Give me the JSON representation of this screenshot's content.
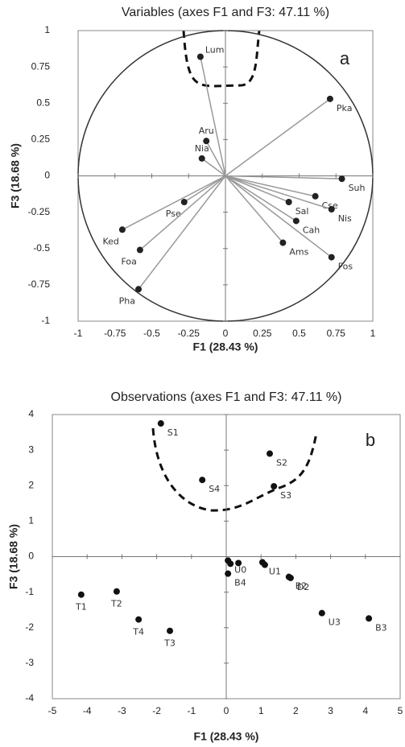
{
  "chart_data": [
    {
      "type": "scatter",
      "vectors": true,
      "title": "Variables (axes F1 and F3: 47.11 %)",
      "xlabel": "F1 (28.43 %)",
      "ylabel": "F3 (18.68 %)",
      "annotation": "a",
      "labels": [
        "Lum",
        "Pka",
        "Aru",
        "Nia",
        "Suh",
        "Cse",
        "Sal",
        "Nis",
        "Cah",
        "Ams",
        "Fos",
        "Pse",
        "Ked",
        "Foa",
        "Pha"
      ],
      "x": [
        -0.17,
        0.71,
        -0.13,
        -0.16,
        0.79,
        0.61,
        0.43,
        0.72,
        0.48,
        0.39,
        0.72,
        -0.28,
        -0.7,
        -0.58,
        -0.59
      ],
      "values": [
        0.82,
        0.53,
        0.24,
        0.12,
        -0.02,
        -0.14,
        -0.18,
        -0.23,
        -0.31,
        -0.46,
        -0.56,
        -0.18,
        -0.37,
        -0.51,
        -0.78
      ],
      "color": "#222222",
      "line_color": "#999999",
      "xlim": [
        -1,
        1
      ],
      "ylim": [
        -1,
        1
      ],
      "xticks": [
        -1,
        -0.75,
        -0.5,
        -0.25,
        0,
        0.25,
        0.5,
        0.75,
        1
      ],
      "yticks": [
        -1,
        -0.75,
        -0.5,
        -0.25,
        0,
        0.25,
        0.5,
        0.75,
        1
      ]
    },
    {
      "type": "scatter",
      "vectors": false,
      "title": "Observations (axes F1 and F3: 47.11 %)",
      "xlabel": "F1 (28.43 %)",
      "ylabel": "F3 (18.68 %)",
      "annotation": "b",
      "labels": [
        "S1",
        "S2",
        "S3",
        "S4",
        "T1",
        "T2",
        "T4",
        "T3",
        "U0",
        null,
        null,
        "B4",
        "U1",
        null,
        "B2",
        "D2",
        "U3",
        "B3"
      ],
      "x": [
        -1.88,
        1.25,
        1.37,
        -0.69,
        -4.17,
        -3.15,
        -2.52,
        -1.62,
        0.05,
        0.12,
        0.35,
        0.05,
        1.04,
        1.11,
        1.8,
        1.85,
        2.75,
        4.1
      ],
      "values": [
        3.75,
        2.9,
        1.98,
        2.16,
        -1.07,
        -0.98,
        -1.77,
        -2.09,
        -0.11,
        -0.2,
        -0.18,
        -0.48,
        -0.16,
        -0.23,
        -0.57,
        -0.6,
        -1.59,
        -1.74
      ],
      "color": "#111111",
      "xlim": [
        -5,
        5
      ],
      "ylim": [
        -4,
        4
      ],
      "xticks": [
        -5,
        -4,
        -3,
        -2,
        -1,
        0,
        1,
        2,
        3,
        4,
        5
      ],
      "yticks": [
        -4,
        -3,
        -2,
        -1,
        0,
        1,
        2,
        3,
        4
      ]
    }
  ]
}
